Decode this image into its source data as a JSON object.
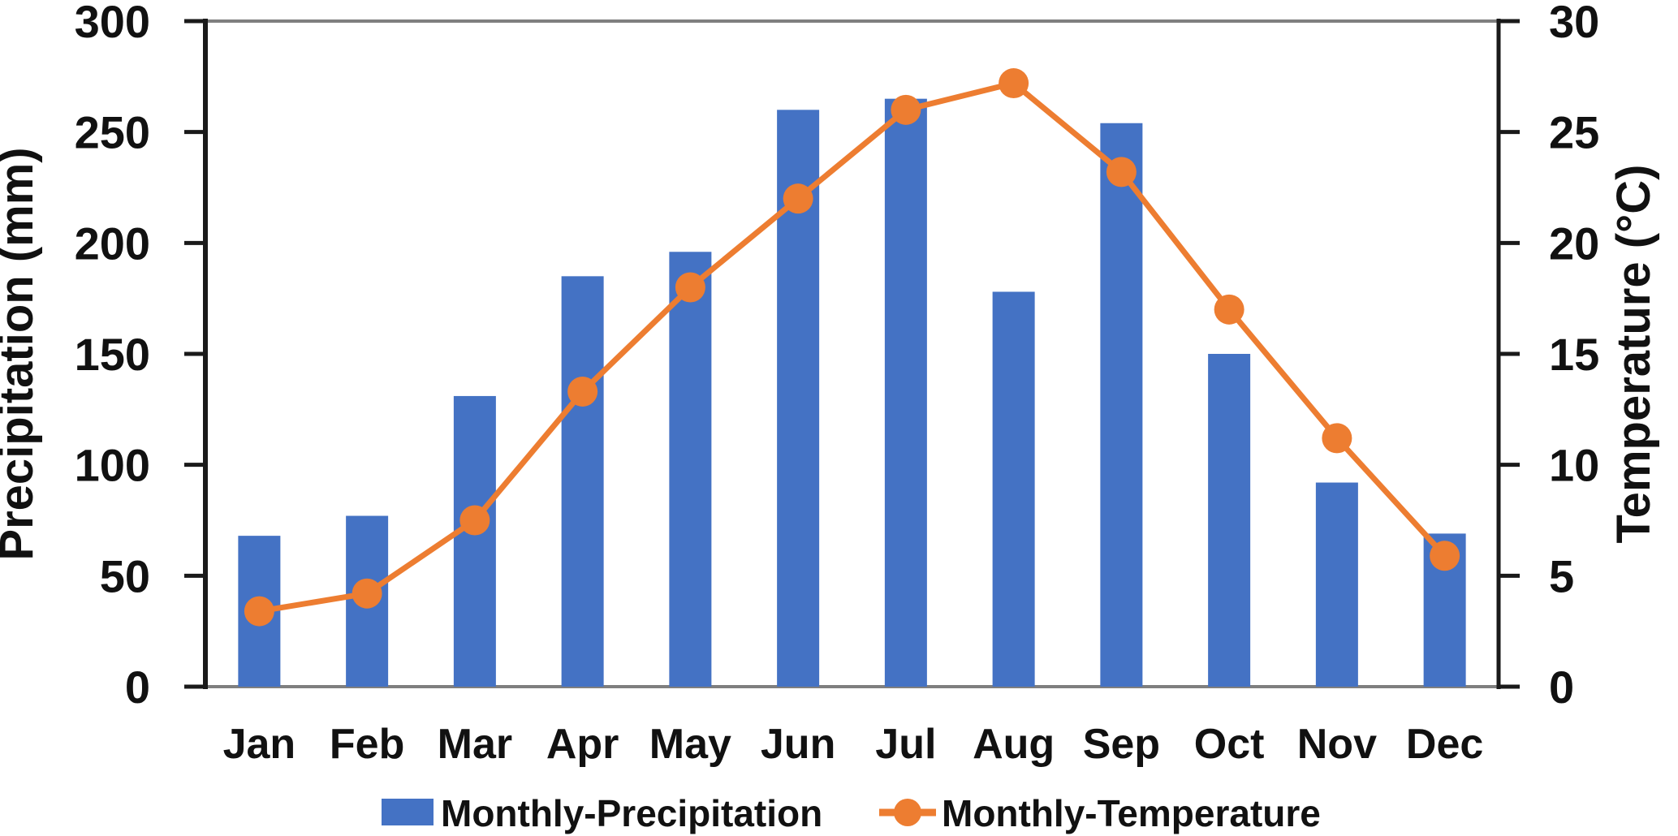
{
  "chart_data": {
    "type": "combo-bar-line",
    "categories": [
      "Jan",
      "Feb",
      "Mar",
      "Apr",
      "May",
      "Jun",
      "Jul",
      "Aug",
      "Sep",
      "Oct",
      "Nov",
      "Dec"
    ],
    "series": [
      {
        "name": "Monthly-Precipitation",
        "type": "bar",
        "axis": "left",
        "color": "#4472C4",
        "values": [
          68,
          77,
          131,
          185,
          196,
          260,
          265,
          178,
          254,
          150,
          92,
          69
        ]
      },
      {
        "name": "Monthly-Temperature",
        "type": "line",
        "axis": "right",
        "color": "#ED7D31",
        "values": [
          3.4,
          4.2,
          7.5,
          13.3,
          18.0,
          22.0,
          26.0,
          27.2,
          23.2,
          17.0,
          11.2,
          5.9
        ]
      }
    ],
    "ylabel_left": "Precipitation (mm)",
    "ylabel_right": "Temperature (°C)",
    "ylim_left": [
      0,
      300
    ],
    "ylim_right": [
      0,
      30
    ],
    "yticks_left": [
      0,
      50,
      100,
      150,
      200,
      250,
      300
    ],
    "yticks_right": [
      0,
      5,
      10,
      15,
      20,
      25,
      30
    ],
    "grid": false,
    "legend_position": "bottom"
  },
  "colors": {
    "bar": "#4472C4",
    "line": "#ED7D31",
    "axis": "#1a1a1a",
    "plot_border": "#7f7f7f",
    "text": "#111111"
  }
}
